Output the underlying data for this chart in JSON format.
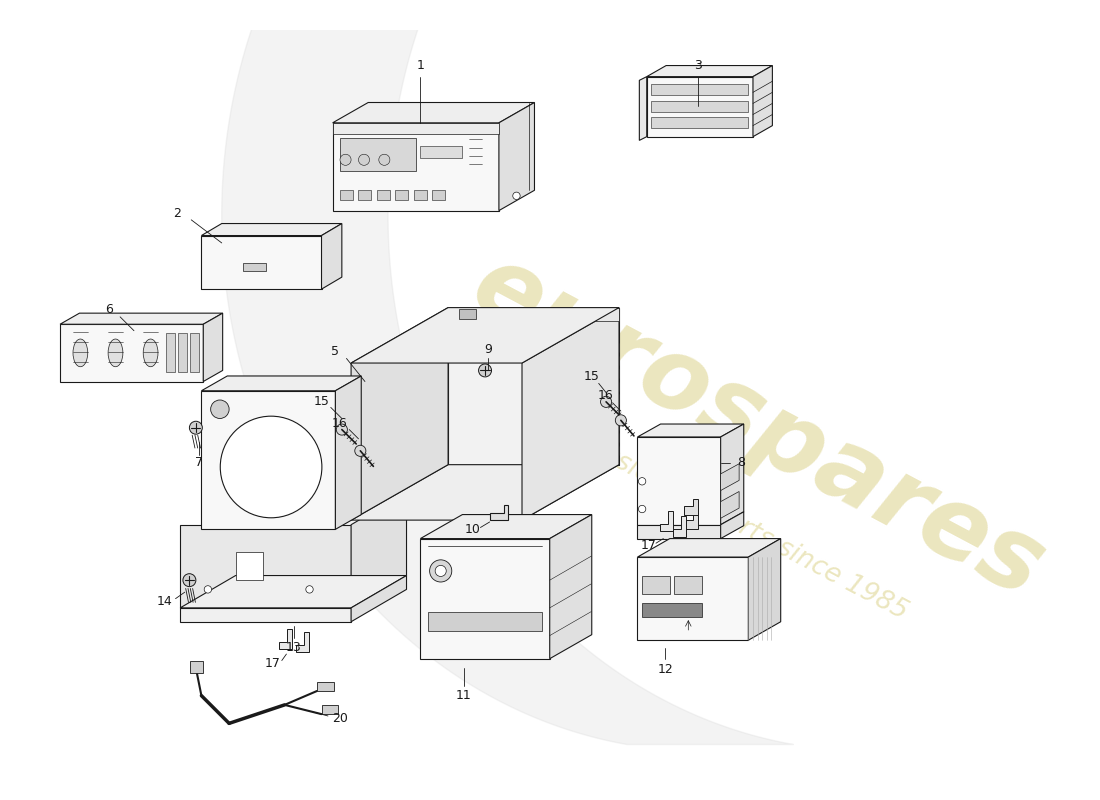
{
  "background_color": "#ffffff",
  "line_color": "#1a1a1a",
  "text_color": "#1a1a1a",
  "fill_front": "#f8f8f8",
  "fill_top": "#eeeeee",
  "fill_right": "#e0e0e0",
  "fill_dark": "#cccccc",
  "watermark_color": "#d4c870",
  "watermark_alpha": 0.45,
  "lw": 0.8,
  "figsize": [
    11.0,
    8.0
  ],
  "dpi": 100
}
